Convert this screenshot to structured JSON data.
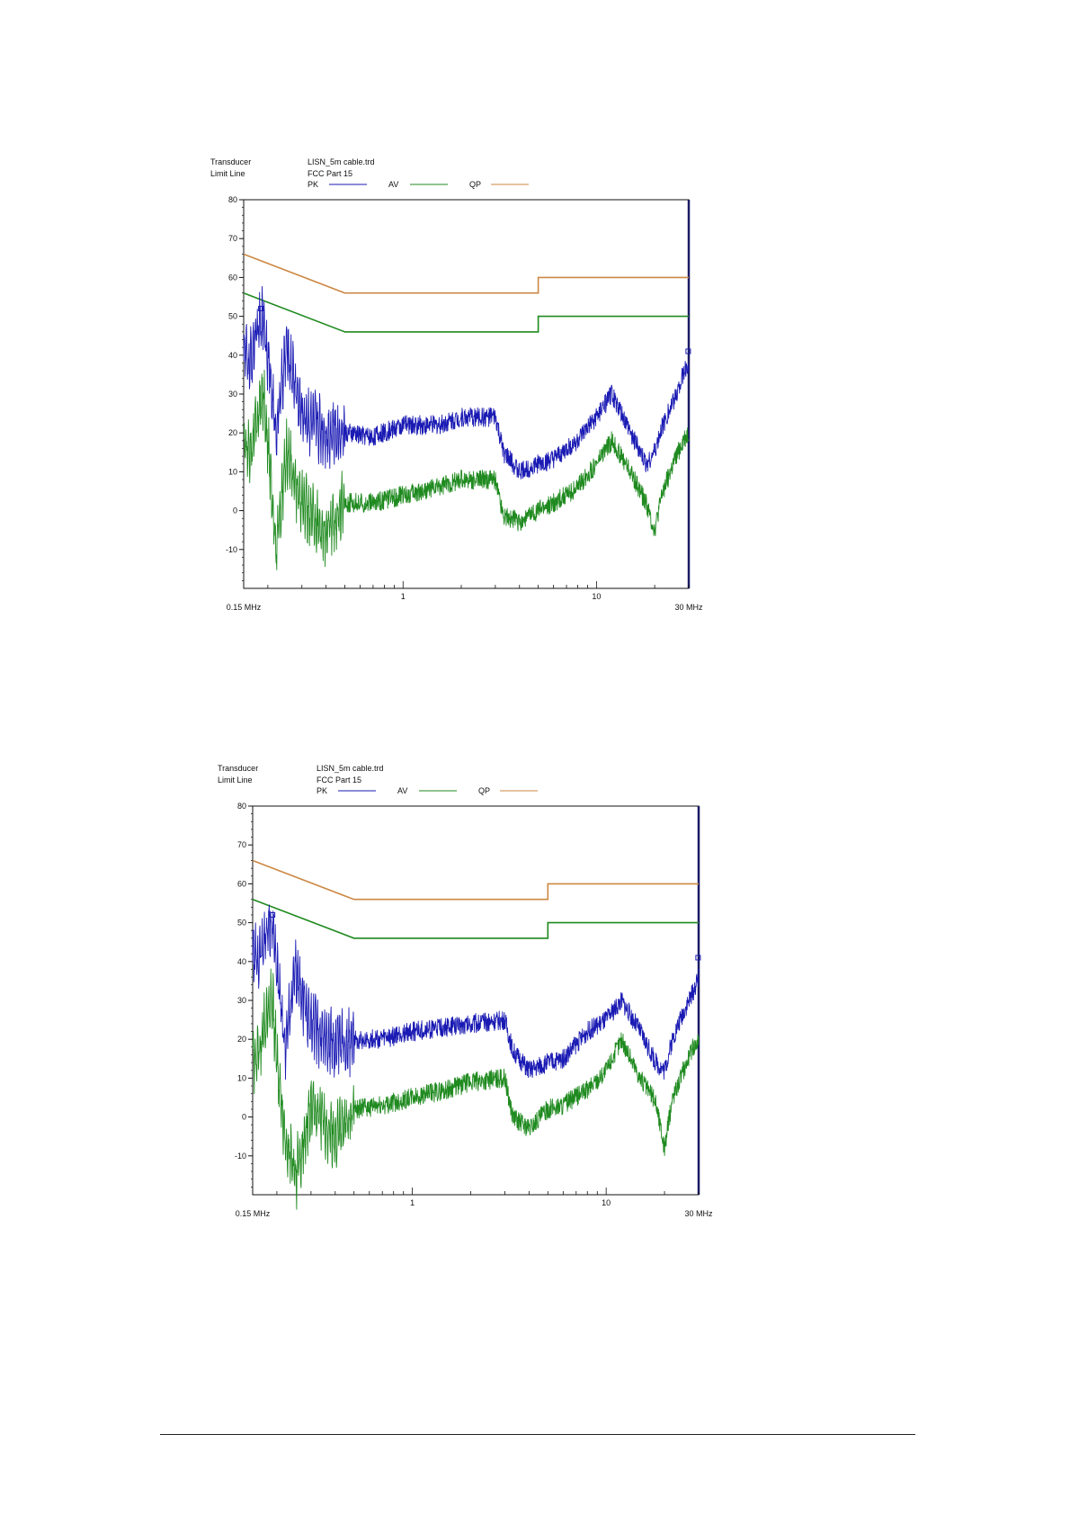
{
  "colors": {
    "pk": "#1a1ab4",
    "av": "#1f8a1f",
    "qp": "#cc8844",
    "axis": "#111111"
  },
  "chart_data": [
    {
      "type": "line",
      "header": {
        "transducer_label": "Transducer",
        "limit_line_label": "Limit Line",
        "transducer_value": "LISN_5m cable.trd",
        "limit_line_value": "FCC Part 15"
      },
      "x_scale": "log",
      "xlim": [
        0.15,
        30
      ],
      "ylim": [
        -20,
        80
      ],
      "y_ticks": [
        80,
        70,
        60,
        50,
        40,
        30,
        20,
        10,
        0,
        -10
      ],
      "x_tick_labels": [
        {
          "value": 0.15,
          "label": "0.15 MHz"
        },
        {
          "value": 1,
          "label": "1"
        },
        {
          "value": 10,
          "label": "10"
        },
        {
          "value": 30,
          "label": "30 MHz"
        }
      ],
      "legend": [
        {
          "name": "PK",
          "series": "pk"
        },
        {
          "name": "AV",
          "series": "av"
        },
        {
          "name": "QP",
          "series": "qp"
        }
      ],
      "limit_lines": {
        "qp": [
          [
            0.15,
            66
          ],
          [
            0.5,
            56
          ],
          [
            5,
            56
          ],
          [
            5,
            60
          ],
          [
            30,
            60
          ]
        ],
        "av": [
          [
            0.15,
            56
          ],
          [
            0.5,
            46
          ],
          [
            5,
            46
          ],
          [
            5,
            50
          ],
          [
            30,
            50
          ]
        ]
      },
      "series": [
        {
          "name": "PK",
          "key": "pk",
          "x": [
            0.15,
            0.16,
            0.17,
            0.18,
            0.19,
            0.2,
            0.22,
            0.25,
            0.3,
            0.4,
            0.5,
            0.7,
            1,
            1.5,
            2,
            3,
            3.3,
            4,
            5,
            6,
            8,
            10,
            12,
            15,
            18,
            20,
            22,
            25,
            28,
            30
          ],
          "y": [
            42,
            37,
            43,
            47,
            50,
            40,
            20,
            42,
            25,
            20,
            20,
            19,
            22,
            22,
            24,
            24,
            15,
            10,
            12,
            13,
            18,
            24,
            30,
            20,
            12,
            15,
            22,
            28,
            35,
            38
          ]
        },
        {
          "name": "AV",
          "key": "av",
          "x": [
            0.15,
            0.16,
            0.17,
            0.18,
            0.19,
            0.2,
            0.22,
            0.25,
            0.3,
            0.4,
            0.5,
            0.7,
            1,
            1.5,
            2,
            3,
            3.3,
            4,
            5,
            6,
            8,
            10,
            12,
            15,
            18,
            20,
            22,
            25,
            28,
            30
          ],
          "y": [
            17,
            16,
            20,
            26,
            30,
            18,
            -10,
            15,
            2,
            -6,
            2,
            2,
            4,
            6,
            8,
            8,
            -1,
            -3,
            0,
            2,
            6,
            12,
            18,
            10,
            2,
            -5,
            5,
            12,
            18,
            20
          ]
        }
      ],
      "markers": [
        {
          "series": "pk",
          "x": 0.184,
          "y": 52
        },
        {
          "series": "pk",
          "x": 29.8,
          "y": 41
        }
      ]
    },
    {
      "type": "line",
      "header": {
        "transducer_label": "Transducer",
        "limit_line_label": "Limit Line",
        "transducer_value": "LISN_5m cable.trd",
        "limit_line_value": "FCC Part 15"
      },
      "x_scale": "log",
      "xlim": [
        0.15,
        30
      ],
      "ylim": [
        -20,
        80
      ],
      "y_ticks": [
        80,
        70,
        60,
        50,
        40,
        30,
        20,
        10,
        0,
        -10
      ],
      "x_tick_labels": [
        {
          "value": 0.15,
          "label": "0.15 MHz"
        },
        {
          "value": 1,
          "label": "1"
        },
        {
          "value": 10,
          "label": "10"
        },
        {
          "value": 30,
          "label": "30 MHz"
        }
      ],
      "legend": [
        {
          "name": "PK",
          "series": "pk"
        },
        {
          "name": "AV",
          "series": "av"
        },
        {
          "name": "QP",
          "series": "qp"
        }
      ],
      "limit_lines": {
        "qp": [
          [
            0.15,
            66
          ],
          [
            0.5,
            56
          ],
          [
            5,
            56
          ],
          [
            5,
            60
          ],
          [
            30,
            60
          ]
        ],
        "av": [
          [
            0.15,
            56
          ],
          [
            0.5,
            46
          ],
          [
            5,
            46
          ],
          [
            5,
            50
          ],
          [
            30,
            50
          ]
        ]
      },
      "series": [
        {
          "name": "PK",
          "key": "pk",
          "x": [
            0.15,
            0.16,
            0.17,
            0.18,
            0.19,
            0.2,
            0.22,
            0.25,
            0.3,
            0.4,
            0.5,
            0.7,
            1,
            1.5,
            2,
            3,
            3.3,
            4,
            5,
            6,
            8,
            10,
            12,
            15,
            18,
            20,
            22,
            25,
            28,
            30
          ],
          "y": [
            42,
            40,
            45,
            48,
            50,
            38,
            18,
            37,
            24,
            18,
            20,
            20,
            22,
            23,
            24,
            25,
            17,
            12,
            14,
            15,
            22,
            25,
            30,
            22,
            14,
            12,
            20,
            27,
            32,
            36
          ]
        },
        {
          "name": "AV",
          "key": "av",
          "x": [
            0.15,
            0.16,
            0.17,
            0.18,
            0.19,
            0.2,
            0.22,
            0.25,
            0.3,
            0.4,
            0.5,
            0.7,
            1,
            1.5,
            2,
            3,
            3.3,
            4,
            5,
            6,
            8,
            10,
            12,
            15,
            18,
            20,
            22,
            25,
            28,
            30
          ],
          "y": [
            15,
            15,
            22,
            28,
            30,
            15,
            -5,
            -15,
            2,
            -5,
            2,
            3,
            5,
            7,
            9,
            10,
            0,
            -3,
            2,
            3,
            7,
            12,
            20,
            10,
            4,
            -8,
            5,
            12,
            18,
            20
          ]
        }
      ],
      "markers": [
        {
          "series": "pk",
          "x": 0.19,
          "y": 52
        },
        {
          "series": "pk",
          "x": 29.8,
          "y": 41
        }
      ]
    }
  ]
}
